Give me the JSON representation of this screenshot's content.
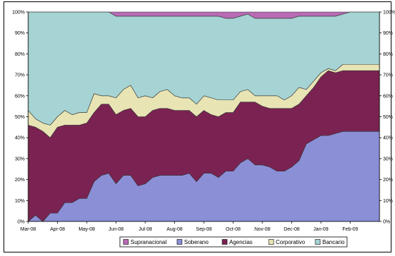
{
  "chart_data": {
    "type": "area",
    "stacked": true,
    "percent": true,
    "title": "",
    "xlabel": "",
    "ylabel": "",
    "ylim": [
      0,
      100
    ],
    "grid": false,
    "legend_position": "bottom",
    "x_tick_labels": [
      "Mar-08",
      "Apr-08",
      "May-08",
      "Jun-08",
      "Jul-08",
      "Aug-08",
      "Sep-08",
      "Oct-08",
      "Nov-08",
      "Dec-08",
      "Jan-09",
      "Feb-09"
    ],
    "y_tick_labels": [
      "0%",
      "10%",
      "20%",
      "30%",
      "40%",
      "50%",
      "60%",
      "70%",
      "80%",
      "90%",
      "100%"
    ],
    "x": [
      0,
      0.25,
      0.5,
      0.75,
      1.0,
      1.25,
      1.5,
      1.75,
      2.0,
      2.25,
      2.5,
      2.75,
      3.0,
      3.25,
      3.5,
      3.75,
      4.0,
      4.25,
      4.5,
      4.75,
      5.0,
      5.25,
      5.5,
      5.75,
      6.0,
      6.25,
      6.5,
      6.75,
      7.0,
      7.25,
      7.5,
      7.75,
      8.0,
      8.25,
      8.5,
      8.75,
      9.0,
      9.25,
      9.5,
      9.75,
      10.0,
      10.25,
      10.5,
      10.75,
      11.0,
      11.25,
      11.5,
      11.75,
      12.0
    ],
    "series": [
      {
        "name": "Soberano",
        "color": "#8b8fd6",
        "values": [
          0,
          3,
          0,
          4,
          4,
          9,
          9,
          11,
          11,
          19,
          22,
          23,
          18,
          22,
          22,
          17,
          18,
          21,
          22,
          22,
          22,
          22,
          23,
          19,
          23,
          23,
          21,
          24,
          24,
          28,
          30,
          27,
          27,
          26,
          24,
          24,
          26,
          29,
          37,
          39,
          41,
          41,
          42,
          43,
          43,
          43,
          43,
          43,
          43
        ]
      },
      {
        "name": "Agencias",
        "color": "#7a2352",
        "values": [
          46,
          42,
          43,
          36,
          41,
          37,
          37,
          35,
          36,
          33,
          34,
          33,
          33,
          31,
          32,
          33,
          32,
          32,
          32,
          32,
          31,
          31,
          30,
          31,
          30,
          28,
          29,
          28,
          28,
          29,
          27,
          30,
          28,
          28,
          30,
          30,
          28,
          27,
          23,
          25,
          28,
          31,
          29,
          29,
          29,
          29,
          29,
          29,
          29
        ]
      },
      {
        "name": "Corporativo",
        "color": "#e8e4b4",
        "values": [
          7,
          4,
          4,
          6,
          5,
          7,
          5,
          6,
          5,
          9,
          4,
          4,
          8,
          10,
          11,
          9,
          10,
          6,
          8,
          9,
          7,
          6,
          6,
          6,
          7,
          8,
          8,
          6,
          6,
          5,
          6,
          3,
          5,
          6,
          6,
          4,
          6,
          8,
          3,
          3,
          2,
          1,
          1,
          3,
          3,
          3,
          3,
          3,
          3
        ]
      },
      {
        "name": "Bancario",
        "color": "#a6d3d3",
        "values": [
          47,
          51,
          53,
          54,
          50,
          47,
          49,
          48,
          48,
          39,
          40,
          40,
          39,
          35,
          33,
          39,
          38,
          39,
          36,
          35,
          38,
          39,
          39,
          42,
          38,
          39,
          40,
          39,
          39,
          36,
          36,
          37,
          37,
          37,
          37,
          39,
          37,
          34,
          35,
          31,
          27,
          25,
          26,
          24,
          25,
          25,
          25,
          25,
          25
        ]
      },
      {
        "name": "Supranacional",
        "color": "#b86bb5",
        "values": [
          0,
          0,
          0,
          0,
          0,
          0,
          0,
          0,
          0,
          0,
          0,
          0,
          2,
          2,
          2,
          2,
          2,
          2,
          2,
          2,
          2,
          2,
          2,
          2,
          2,
          2,
          2,
          3,
          3,
          2,
          1,
          3,
          3,
          3,
          3,
          3,
          3,
          2,
          2,
          2,
          2,
          2,
          2,
          1,
          0,
          0,
          0,
          0,
          0
        ]
      }
    ],
    "legend_order": [
      "Supranacional",
      "Soberano",
      "Agencias",
      "Corporativo",
      "Bancario"
    ]
  }
}
